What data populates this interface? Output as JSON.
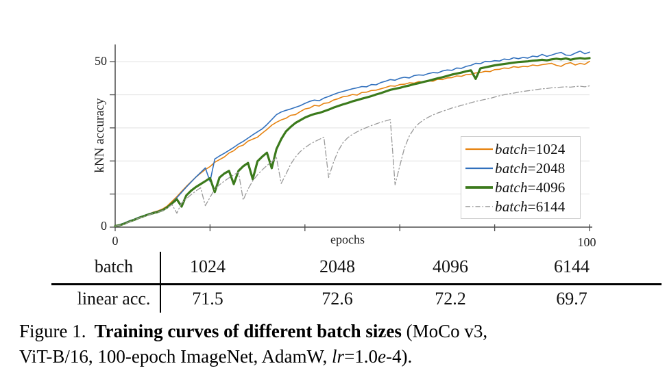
{
  "caption": {
    "figure_label": "Figure 1.",
    "bold_text": "Training curves of different batch sizes",
    "line1_tail": "(MoCo v3,",
    "line2_pre": "ViT-B/16, 100-epoch ImageNet, AdamW,",
    "lr_italic": "lr",
    "lr_mid": "=1.0",
    "e_italic": "e",
    "line2_tail": "-4)."
  },
  "table": {
    "row1_label": "batch",
    "row2_label": "linear acc.",
    "batches": [
      "1024",
      "2048",
      "4096",
      "6144"
    ],
    "linear_acc": [
      "71.5",
      "72.6",
      "72.2",
      "69.7"
    ]
  },
  "chart_data": {
    "type": "line",
    "xlabel": "epochs",
    "ylabel": "kNN accuracy",
    "xlim": [
      0,
      100
    ],
    "ylim": [
      0,
      55
    ],
    "xticks": [
      0,
      20,
      40,
      60,
      80,
      100
    ],
    "yticks": [
      0,
      10,
      20,
      30,
      40,
      50
    ],
    "xtick_labels": {
      "left": "0",
      "right": "100"
    },
    "ytick_labels": {
      "bottom": "0",
      "top": "50"
    },
    "grid": "horizontal-y-only",
    "legend_position": "inside-right",
    "x_start": 0,
    "x_step": 1,
    "series": [
      {
        "key": "batch-1024",
        "label_prefix": "batch",
        "label_suffix": "=1024",
        "color": "#e6820f",
        "width": 1.6,
        "dash": null,
        "values": [
          0.3,
          0.7,
          1.2,
          1.8,
          2.3,
          2.9,
          3.4,
          3.9,
          4.5,
          4.9,
          5.5,
          6.4,
          7.8,
          9.2,
          10.8,
          12.3,
          13.7,
          15.1,
          16.3,
          17.4,
          18.3,
          19.6,
          20.4,
          21.2,
          22.4,
          23.1,
          24.3,
          24.8,
          26.0,
          26.6,
          27.2,
          28.4,
          29.5,
          30.8,
          31.7,
          32.4,
          32.9,
          33.8,
          34.0,
          34.9,
          35.7,
          36.0,
          36.8,
          36.6,
          37.4,
          37.6,
          38.4,
          38.8,
          39.4,
          39.6,
          40.1,
          39.9,
          40.7,
          40.8,
          41.3,
          41.4,
          41.8,
          42.2,
          42.7,
          42.6,
          43.1,
          43.2,
          43.6,
          43.5,
          44.0,
          43.8,
          44.2,
          44.1,
          44.7,
          44.6,
          45.1,
          45.2,
          45.7,
          45.6,
          46.1,
          46.2,
          46.6,
          46.7,
          47.1,
          47.0,
          47.6,
          47.7,
          48.1,
          48.0,
          48.5,
          48.3,
          48.6,
          48.5,
          49.0,
          48.8,
          49.1,
          49.3,
          49.5,
          48.9,
          48.6,
          49.4,
          49.7,
          49.0,
          49.5,
          49.2,
          50.1
        ]
      },
      {
        "key": "batch-2048",
        "label_prefix": "batch",
        "label_suffix": "=2048",
        "color": "#3170bd",
        "width": 1.6,
        "dash": null,
        "values": [
          0.3,
          0.8,
          1.3,
          1.9,
          2.4,
          3.0,
          3.5,
          4.0,
          4.4,
          4.8,
          5.3,
          6.1,
          7.4,
          8.9,
          10.5,
          12.1,
          13.6,
          15.1,
          16.5,
          17.9,
          13.8,
          20.6,
          21.5,
          22.3,
          23.2,
          24.1,
          25.1,
          25.9,
          26.9,
          27.9,
          28.8,
          29.7,
          31.0,
          32.5,
          34.0,
          34.8,
          35.3,
          35.7,
          36.2,
          36.7,
          37.4,
          38.0,
          38.4,
          38.2,
          39.0,
          39.5,
          40.1,
          40.6,
          41.0,
          41.4,
          41.8,
          42.1,
          42.5,
          42.4,
          43.1,
          43.0,
          43.7,
          44.1,
          44.6,
          44.4,
          45.0,
          45.3,
          45.1,
          45.8,
          46.0,
          45.9,
          46.4,
          46.7,
          46.6,
          47.2,
          47.5,
          47.4,
          48.1,
          48.0,
          48.6,
          48.9,
          49.5,
          49.4,
          50.1,
          50.0,
          50.3,
          50.2,
          50.8,
          50.6,
          51.2,
          50.9,
          51.3,
          51.1,
          51.7,
          51.5,
          52.2,
          51.6,
          52.0,
          52.5,
          52.8,
          52.0,
          51.9,
          52.6,
          53.2,
          52.4,
          52.9
        ]
      },
      {
        "key": "batch-4096",
        "label_prefix": "batch",
        "label_suffix": "=4096",
        "color": "#3b7a1c",
        "width": 3.2,
        "dash": null,
        "values": [
          0.3,
          0.6,
          1.1,
          1.7,
          2.2,
          2.8,
          3.3,
          3.8,
          4.2,
          4.6,
          5.1,
          6.0,
          7.2,
          8.4,
          6.2,
          9.6,
          11.0,
          12.1,
          13.0,
          13.9,
          14.8,
          10.6,
          15.0,
          16.2,
          17.0,
          13.0,
          17.0,
          18.4,
          19.4,
          14.5,
          19.9,
          21.3,
          22.5,
          17.8,
          23.6,
          26.6,
          28.9,
          30.3,
          31.5,
          32.3,
          33.1,
          33.7,
          34.2,
          34.5,
          35.0,
          35.5,
          36.1,
          36.6,
          37.1,
          37.5,
          38.0,
          38.4,
          38.8,
          39.2,
          39.6,
          40.1,
          40.5,
          41.0,
          41.5,
          41.8,
          42.1,
          42.5,
          42.8,
          43.2,
          43.5,
          43.9,
          44.2,
          44.6,
          45.0,
          45.3,
          45.7,
          46.1,
          46.4,
          46.7,
          47.1,
          47.4,
          44.8,
          48.0,
          48.3,
          48.6,
          48.9,
          49.1,
          49.3,
          49.5,
          49.7,
          49.9,
          50.0,
          50.1,
          50.3,
          50.4,
          50.6,
          50.4,
          50.7,
          50.9,
          50.7,
          51.0,
          50.6,
          50.9,
          51.1,
          50.9,
          51.1
        ]
      },
      {
        "key": "batch-6144",
        "label_prefix": "batch",
        "label_suffix": "=6144",
        "color": "#9a9a9a",
        "width": 1.3,
        "dash": "8 3.5 1.5 3.5",
        "values": [
          0.3,
          0.6,
          1.0,
          1.6,
          2.2,
          2.7,
          3.2,
          3.7,
          4.1,
          4.5,
          5.0,
          5.8,
          6.8,
          4.2,
          7.3,
          8.6,
          9.8,
          10.9,
          11.9,
          6.5,
          9.0,
          11.5,
          12.8,
          13.9,
          14.9,
          15.8,
          16.6,
          8.2,
          11.5,
          14.0,
          15.8,
          17.3,
          18.6,
          19.8,
          21.0,
          13.2,
          16.0,
          19.0,
          21.2,
          22.8,
          24.0,
          25.0,
          25.8,
          26.5,
          27.2,
          15.0,
          19.5,
          23.0,
          25.5,
          27.0,
          28.0,
          28.8,
          29.5,
          30.1,
          30.7,
          31.2,
          31.7,
          32.1,
          32.5,
          12.8,
          18.5,
          24.0,
          27.5,
          29.8,
          31.3,
          32.4,
          33.2,
          33.9,
          34.5,
          35.0,
          35.5,
          36.0,
          36.4,
          36.8,
          37.2,
          37.6,
          38.0,
          38.3,
          38.6,
          38.9,
          39.3,
          39.7,
          40.0,
          40.3,
          40.5,
          40.8,
          41.0,
          41.2,
          41.4,
          41.6,
          41.8,
          41.9,
          42.1,
          42.2,
          42.3,
          42.4,
          42.3,
          42.5,
          42.6,
          42.4,
          42.7
        ]
      }
    ]
  }
}
